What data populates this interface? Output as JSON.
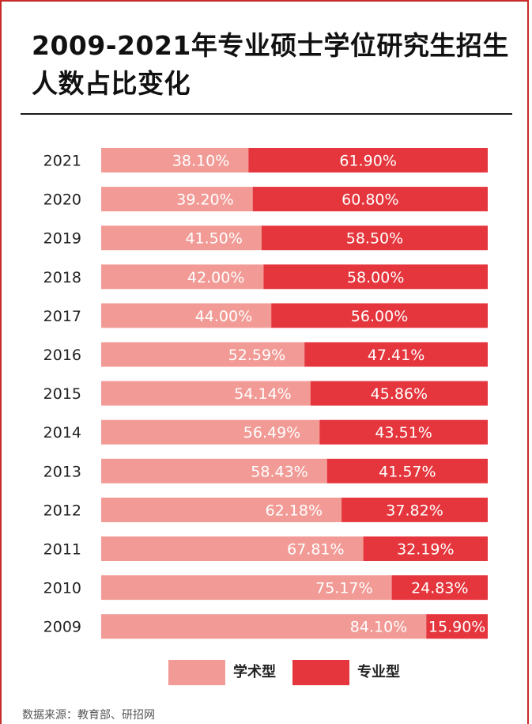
{
  "title": "2009-2021年专业硕士学位研究生招生人数占比变化",
  "source": "数据来源：教育部、研招网",
  "colors": {
    "academic": "#f29b96",
    "professional": "#e5363d"
  },
  "chart_data": {
    "type": "bar",
    "orientation": "horizontal-stacked-100",
    "categories": [
      "2021",
      "2020",
      "2019",
      "2018",
      "2017",
      "2016",
      "2015",
      "2014",
      "2013",
      "2012",
      "2011",
      "2010",
      "2009"
    ],
    "series": [
      {
        "name": "学术型",
        "values": [
          38.1,
          39.2,
          41.5,
          42.0,
          44.0,
          52.59,
          54.14,
          56.49,
          58.43,
          62.18,
          67.81,
          75.17,
          84.1
        ],
        "labels": [
          "38.10%",
          "39.20%",
          "41.50%",
          "42.00%",
          "44.00%",
          "52.59%",
          "54.14%",
          "56.49%",
          "58.43%",
          "62.18%",
          "67.81%",
          "75.17%",
          "84.10%"
        ]
      },
      {
        "name": "专业型",
        "values": [
          61.9,
          60.8,
          58.5,
          58.0,
          56.0,
          47.41,
          45.86,
          43.51,
          41.57,
          37.82,
          32.19,
          24.83,
          15.9
        ],
        "labels": [
          "61.90%",
          "60.80%",
          "58.50%",
          "58.00%",
          "56.00%",
          "47.41%",
          "45.86%",
          "43.51%",
          "41.57%",
          "37.82%",
          "32.19%",
          "24.83%",
          "15.90%"
        ]
      }
    ],
    "xlim": [
      0,
      100
    ],
    "legend": "bottom"
  }
}
